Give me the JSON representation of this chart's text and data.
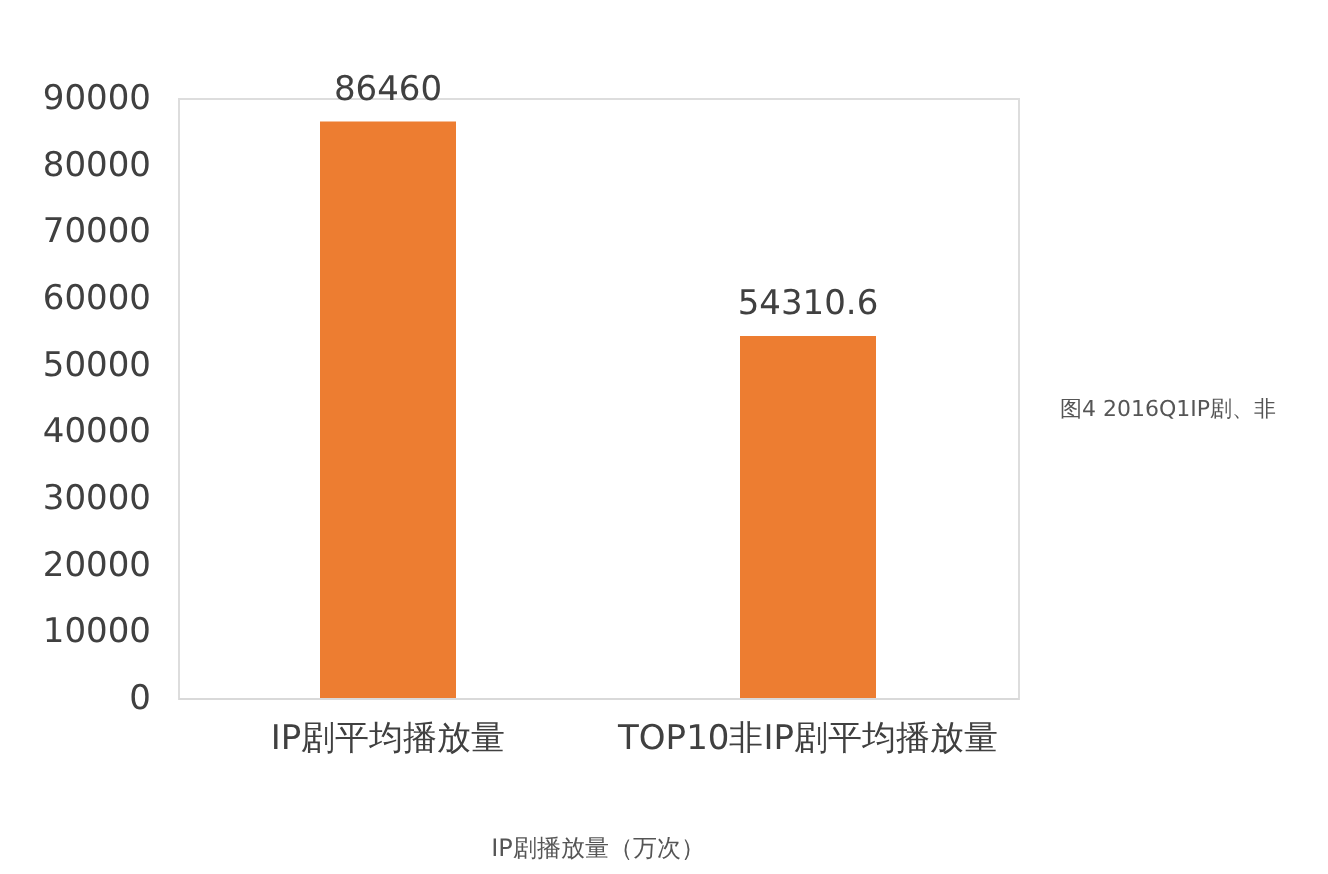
{
  "chart_data": {
    "type": "bar",
    "categories": [
      "IP剧平均播放量",
      "TOP10非IP剧平均播放量"
    ],
    "values": [
      86460,
      54310.6
    ],
    "color": "#ed7d31",
    "ylim": [
      0,
      90000
    ],
    "yticks": [
      0,
      10000,
      20000,
      30000,
      40000,
      50000,
      60000,
      70000,
      80000,
      90000
    ],
    "data_labels": true,
    "grid": false,
    "annotations": [
      "图4 2016Q1IP剧、非",
      "IP剧播放量（万次）"
    ]
  }
}
